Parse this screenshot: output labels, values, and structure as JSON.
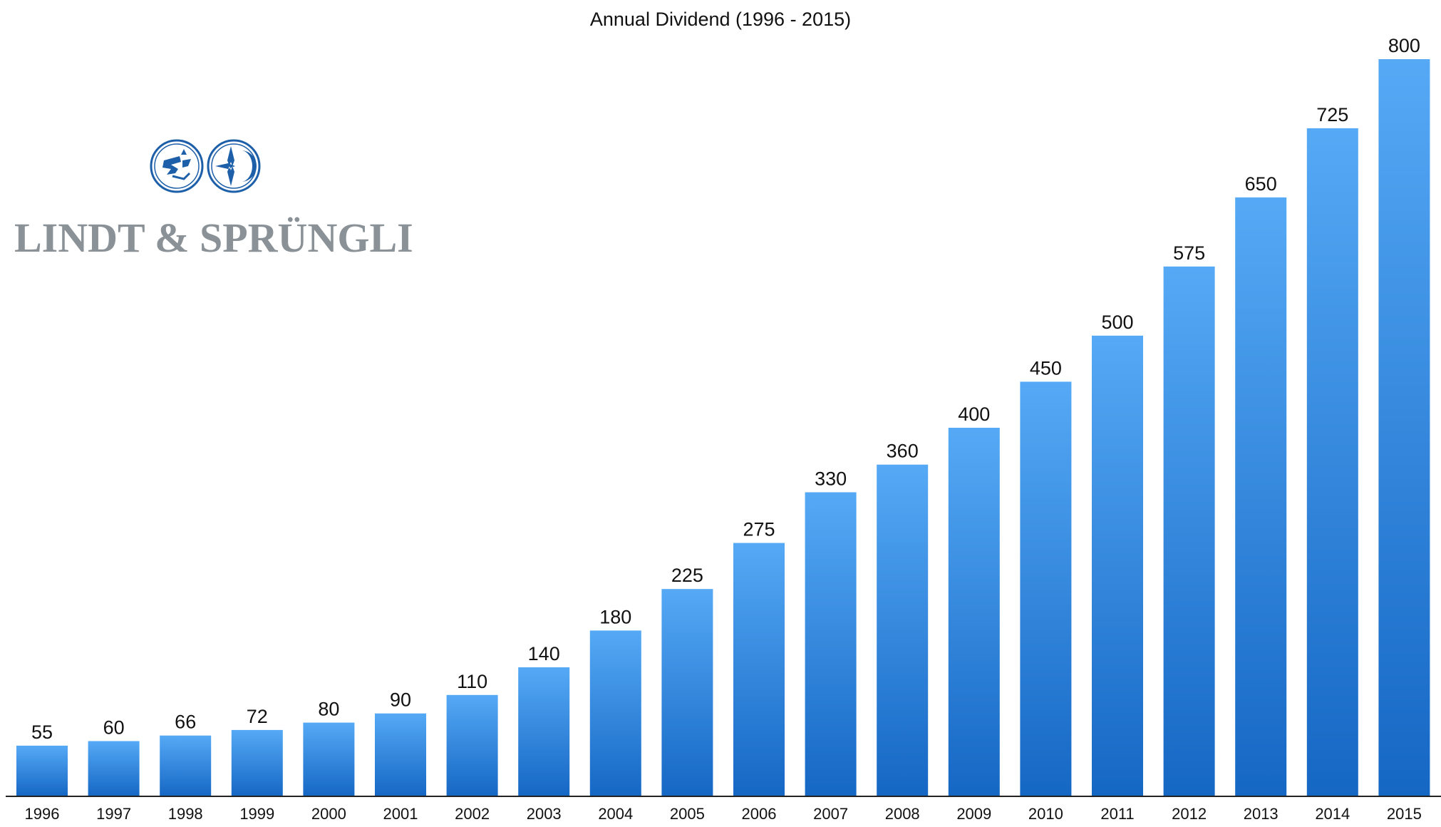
{
  "chart_data": {
    "type": "bar",
    "title": "Annual Dividend (1996 - 2015)",
    "xlabel": "",
    "ylabel": "",
    "categories": [
      "1996",
      "1997",
      "1998",
      "1999",
      "2000",
      "2001",
      "2002",
      "2003",
      "2004",
      "2005",
      "2006",
      "2007",
      "2008",
      "2009",
      "2010",
      "2011",
      "2012",
      "2013",
      "2014",
      "2015"
    ],
    "values": [
      55,
      60,
      66,
      72,
      80,
      90,
      110,
      140,
      180,
      225,
      275,
      330,
      360,
      400,
      450,
      500,
      575,
      650,
      725,
      800
    ],
    "ylim": [
      0,
      800
    ],
    "grid": false,
    "legend": "none",
    "data_labels": true,
    "colors": {
      "bar_top": "#55a9f5",
      "bar_bottom": "#1567c4",
      "axis": "#222222"
    }
  },
  "logo": {
    "text": "LINDT & SPRÜNGLI",
    "colors": {
      "emblem": "#1d5fa8",
      "wordmark": "#8a9297"
    }
  }
}
